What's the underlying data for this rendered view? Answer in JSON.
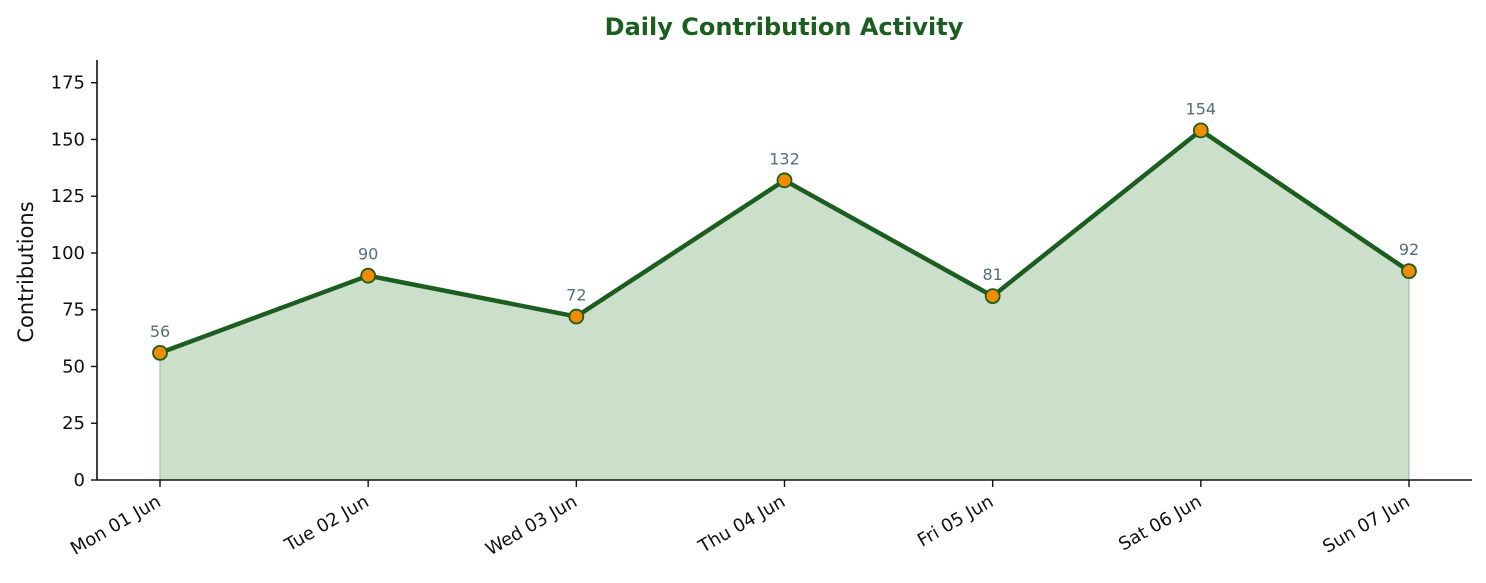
{
  "chart_data": {
    "type": "area",
    "title": "Daily Contribution Activity",
    "xlabel": "",
    "ylabel": "Contributions",
    "categories": [
      "Mon 01 Jun",
      "Tue 02 Jun",
      "Wed 03 Jun",
      "Thu 04 Jun",
      "Fri 05 Jun",
      "Sat 06 Jun",
      "Sun 07 Jun"
    ],
    "values": [
      56,
      90,
      72,
      132,
      81,
      154,
      92
    ],
    "ylim": [
      0,
      185
    ],
    "yticks": [
      0,
      25,
      50,
      75,
      100,
      125,
      150,
      175
    ],
    "grid": false,
    "legend": "none",
    "colors": {
      "line": "#1b5e20",
      "fill": "#cbdfcb",
      "marker": "#f38b00",
      "title": "#1b5e20",
      "data_label": "#546e7a"
    }
  }
}
